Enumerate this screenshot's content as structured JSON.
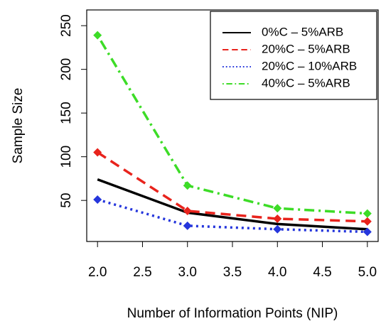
{
  "chart_data": {
    "type": "line",
    "x_label": "Number of Information Points (NIP)",
    "y_label": "Sample Size",
    "x": [
      2,
      3,
      4,
      5
    ],
    "xlim": [
      1.88,
      5.12
    ],
    "ylim": [
      3,
      268
    ],
    "xticks": [
      {
        "value": 2,
        "label": "2.0"
      },
      {
        "value": 2.5,
        "label": "2.5"
      },
      {
        "value": 3,
        "label": "3.0"
      },
      {
        "value": 3.5,
        "label": "3.5"
      },
      {
        "value": 4,
        "label": "4.0"
      },
      {
        "value": 4.5,
        "label": "4.5"
      },
      {
        "value": 5,
        "label": "5.0"
      }
    ],
    "yticks": [
      50,
      100,
      150,
      200,
      250
    ],
    "legend": "top-right",
    "series": [
      {
        "name": "0%C – 5%ARB",
        "color": "#000000",
        "line_style": "solid",
        "markers": false,
        "values": [
          74,
          36,
          23,
          17
        ]
      },
      {
        "name": "20%C – 5%ARB",
        "color": "#e8231c",
        "line_style": "dashed",
        "markers": true,
        "values": [
          105,
          38,
          29,
          26
        ]
      },
      {
        "name": "20%C – 10%ARB",
        "color": "#2536dc",
        "line_style": "dotted",
        "markers": true,
        "values": [
          51,
          21,
          17,
          14
        ]
      },
      {
        "name": "40%C – 5%ARB",
        "color": "#3ddc27",
        "line_style": "dotdash",
        "markers": true,
        "values": [
          239,
          67,
          41,
          35
        ]
      }
    ]
  }
}
